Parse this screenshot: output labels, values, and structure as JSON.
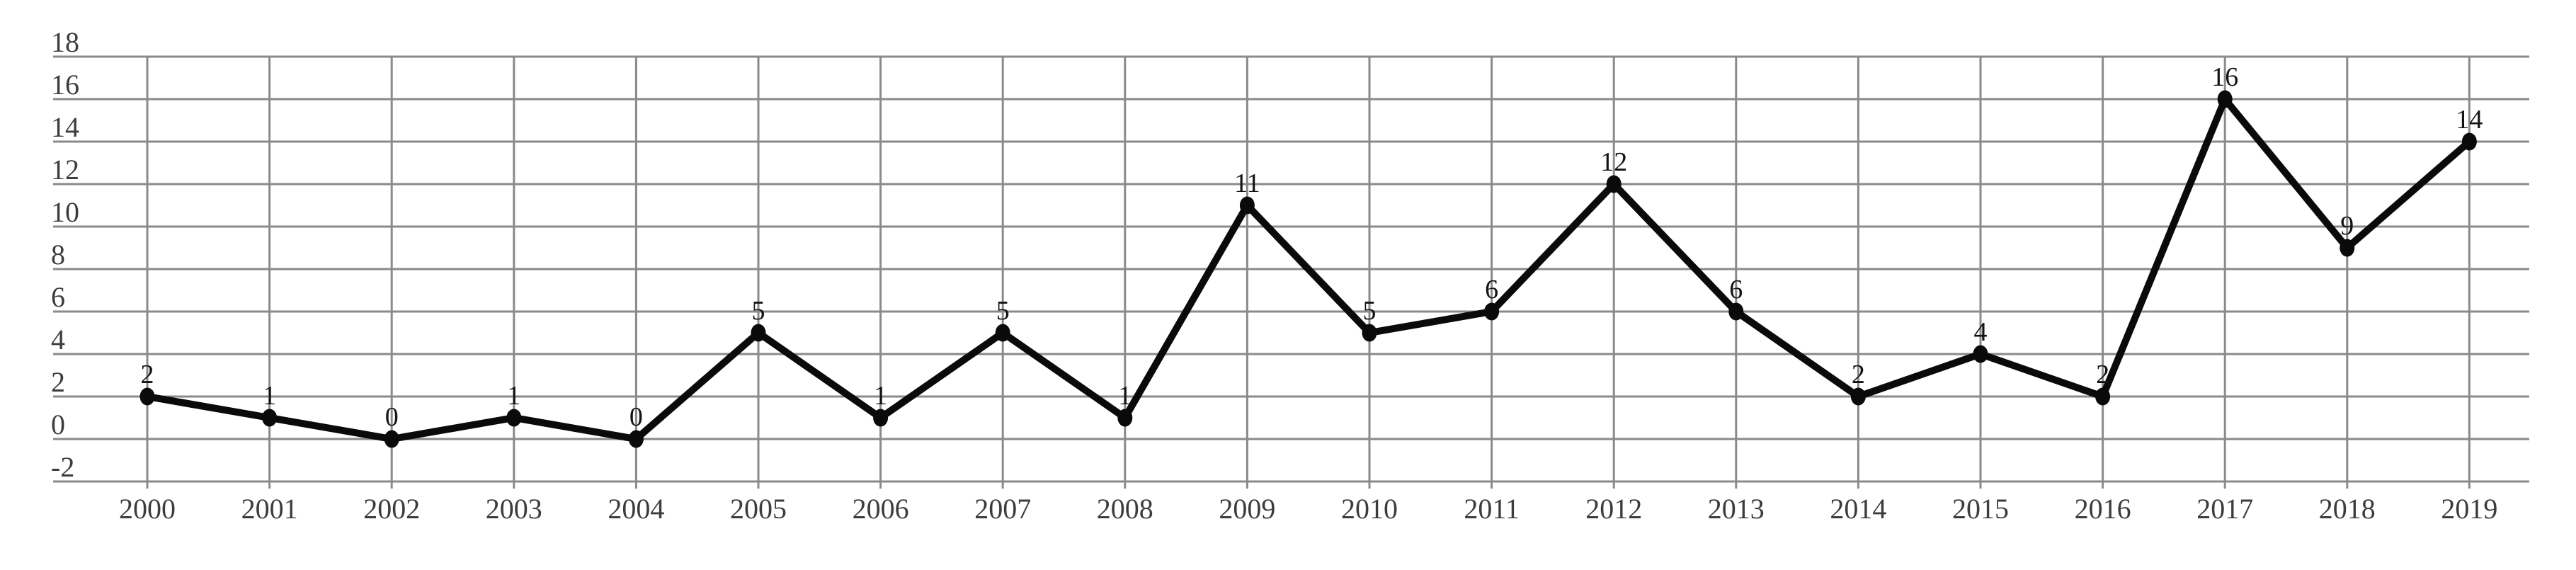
{
  "chart_data": {
    "type": "line",
    "title": "",
    "xlabel": "",
    "ylabel": "",
    "categories": [
      "2000",
      "2001",
      "2002",
      "2003",
      "2004",
      "2005",
      "2006",
      "2007",
      "2008",
      "2009",
      "2010",
      "2011",
      "2012",
      "2013",
      "2014",
      "2015",
      "2016",
      "2017",
      "2018",
      "2019"
    ],
    "series": [
      {
        "name": "",
        "values": [
          2,
          1,
          0,
          1,
          0,
          5,
          1,
          5,
          1,
          11,
          5,
          6,
          12,
          6,
          2,
          4,
          2,
          16,
          9,
          14
        ],
        "point_labels": [
          "2",
          "1",
          "0",
          "1",
          "0",
          "5",
          "1",
          "5",
          "1",
          "11",
          "5",
          "6",
          "12",
          "6",
          "2",
          "4",
          "2",
          "16",
          "9",
          "14"
        ]
      }
    ],
    "ylim": [
      -2,
      18
    ],
    "ytick_labels": [
      "18",
      "16",
      "14",
      "12",
      "10",
      "8",
      "6",
      "4",
      "2",
      "0",
      "-2"
    ],
    "ytick_values": [
      18,
      16,
      14,
      12,
      10,
      8,
      6,
      4,
      2,
      0,
      -2
    ],
    "grid": "both",
    "legend_position": "none",
    "marker": "filled-circle",
    "colors": {
      "background": "#ffffff",
      "grid": "#8a8a8a",
      "line": "#0a0a0a",
      "marker": "#0a0a0a",
      "axis_text": "#3c3c3c",
      "data_label_text": "#141414"
    }
  }
}
